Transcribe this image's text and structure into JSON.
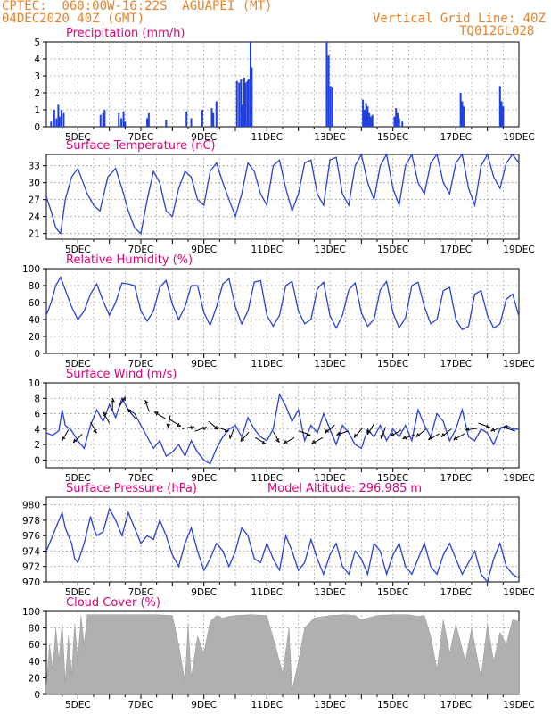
{
  "header": {
    "line1": "CPTEC:  060:00W-16:22S  AGUAPEI (MT)",
    "line2": "04DEC2020 40Z (GMT)",
    "grid_note": "Vertical Grid Line: 40Z",
    "code": "TQ0126L028"
  },
  "colors": {
    "series": "#2b3fd6",
    "bars": "#1f3fe0",
    "cloud": "#b0b0b0",
    "title": "#e0007a",
    "header": "#e8822a"
  },
  "date_ticks": [
    "5DEC",
    "7DEC",
    "9DEC",
    "11DEC",
    "13DEC",
    "15DEC",
    "17DEC",
    "19DEC"
  ],
  "chart_data": [
    {
      "type": "bar",
      "title": "Precipitation (mm/h)",
      "x_unit": "days since 04DEC2020 00Z",
      "xlim": [
        0,
        15
      ],
      "ylim": [
        0,
        5
      ],
      "yticks": [
        "0",
        "1",
        "2",
        "3",
        "4",
        "5"
      ],
      "x": [
        0.15,
        0.25,
        0.32,
        0.38,
        0.42,
        0.48,
        0.55,
        1.72,
        1.8,
        1.85,
        2.3,
        2.38,
        2.45,
        2.5,
        3.2,
        3.25,
        3.8,
        4.45,
        4.6,
        4.95,
        5.25,
        5.3,
        5.4,
        6.05,
        6.12,
        6.18,
        6.22,
        6.28,
        6.32,
        6.38,
        6.42,
        6.48,
        6.52,
        8.9,
        8.96,
        9.02,
        9.08,
        10.05,
        10.1,
        10.15,
        10.2,
        10.25,
        10.3,
        10.35,
        11.05,
        11.1,
        11.15,
        11.2,
        11.3,
        13.15,
        13.2,
        13.25,
        14.4,
        14.45,
        14.5
      ],
      "values": [
        0.3,
        1.0,
        0.5,
        1.3,
        0.6,
        1.0,
        0.8,
        0.7,
        0.8,
        1.0,
        0.8,
        0.5,
        0.9,
        0.3,
        0.5,
        0.8,
        0.4,
        0.9,
        0.5,
        1.0,
        1.1,
        0.8,
        1.5,
        2.7,
        2.6,
        2.8,
        1.3,
        2.9,
        2.6,
        2.7,
        2.8,
        5.0,
        3.5,
        5.0,
        4.2,
        2.4,
        2.3,
        1.6,
        1.0,
        1.4,
        1.2,
        0.8,
        0.6,
        0.7,
        0.6,
        1.1,
        0.8,
        0.5,
        0.3,
        2.0,
        1.5,
        1.2,
        2.4,
        1.5,
        1.2
      ]
    },
    {
      "type": "line",
      "title": "Surface Temperature (nC)",
      "x_unit": "days since 04DEC2020 00Z",
      "xlim": [
        0,
        15
      ],
      "ylim": [
        20,
        35
      ],
      "yticks": [
        "21",
        "24",
        "27",
        "30",
        "33"
      ],
      "ytick_values": [
        21,
        24,
        27,
        30,
        33
      ],
      "x": [
        0.0,
        0.15,
        0.3,
        0.45,
        0.6,
        0.8,
        1.0,
        1.1,
        1.3,
        1.5,
        1.7,
        1.95,
        2.2,
        2.4,
        2.6,
        2.8,
        3.0,
        3.2,
        3.4,
        3.6,
        3.8,
        4.0,
        4.2,
        4.4,
        4.6,
        4.8,
        5.0,
        5.2,
        5.4,
        5.6,
        5.8,
        6.0,
        6.2,
        6.4,
        6.6,
        6.8,
        7.0,
        7.2,
        7.4,
        7.6,
        7.8,
        8.0,
        8.2,
        8.4,
        8.6,
        8.8,
        9.0,
        9.2,
        9.4,
        9.6,
        9.8,
        10.0,
        10.2,
        10.4,
        10.6,
        10.8,
        11.0,
        11.2,
        11.4,
        11.6,
        11.8,
        12.0,
        12.2,
        12.4,
        12.6,
        12.8,
        13.0,
        13.2,
        13.4,
        13.6,
        13.8,
        14.0,
        14.2,
        14.4,
        14.6,
        14.8,
        15.0
      ],
      "values": [
        27.5,
        25,
        22,
        21,
        27,
        31,
        32.5,
        31,
        28,
        26,
        25,
        31,
        32.5,
        29,
        25,
        22,
        21,
        27,
        32,
        30,
        25,
        24,
        29,
        32,
        31,
        27,
        26,
        32,
        33.5,
        30,
        27,
        24,
        28,
        33.5,
        32,
        28,
        26,
        33,
        34,
        29,
        25,
        28,
        33.5,
        34,
        28,
        26,
        34,
        34.5,
        28,
        26,
        33,
        35,
        30,
        27,
        33,
        35,
        29,
        26,
        33,
        35,
        30,
        28,
        33.5,
        35,
        30,
        28,
        33.5,
        35,
        29,
        26,
        33,
        35,
        31,
        29,
        33.5,
        35,
        33.5
      ]
    },
    {
      "type": "line",
      "title": "Relative Humidity (%)",
      "x_unit": "days since 04DEC2020 00Z",
      "xlim": [
        0,
        15
      ],
      "ylim": [
        0,
        100
      ],
      "yticks": [
        "0",
        "20",
        "40",
        "60",
        "80",
        "100"
      ],
      "ytick_values": [
        0,
        20,
        40,
        60,
        80,
        100
      ],
      "x": [
        0.0,
        0.15,
        0.3,
        0.45,
        0.6,
        0.8,
        1.0,
        1.2,
        1.4,
        1.6,
        1.8,
        2.0,
        2.2,
        2.4,
        2.6,
        2.8,
        3.0,
        3.2,
        3.4,
        3.6,
        3.8,
        4.0,
        4.2,
        4.4,
        4.6,
        4.8,
        5.0,
        5.2,
        5.4,
        5.6,
        5.8,
        6.0,
        6.2,
        6.4,
        6.6,
        6.8,
        7.0,
        7.2,
        7.4,
        7.6,
        7.8,
        8.0,
        8.2,
        8.4,
        8.6,
        8.8,
        9.0,
        9.2,
        9.4,
        9.6,
        9.8,
        10.0,
        10.2,
        10.4,
        10.6,
        10.8,
        11.0,
        11.2,
        11.4,
        11.6,
        11.8,
        12.0,
        12.2,
        12.4,
        12.6,
        12.8,
        13.0,
        13.2,
        13.4,
        13.6,
        13.8,
        14.0,
        14.2,
        14.4,
        14.6,
        14.8,
        15.0
      ],
      "values": [
        45,
        60,
        80,
        90,
        75,
        55,
        40,
        50,
        70,
        82,
        62,
        45,
        60,
        83,
        82,
        80,
        50,
        38,
        50,
        78,
        86,
        58,
        40,
        55,
        80,
        80,
        48,
        33,
        55,
        82,
        88,
        55,
        35,
        50,
        84,
        86,
        45,
        32,
        45,
        80,
        85,
        50,
        35,
        40,
        76,
        84,
        45,
        30,
        45,
        75,
        83,
        48,
        32,
        40,
        75,
        85,
        48,
        30,
        42,
        80,
        84,
        55,
        35,
        40,
        74,
        78,
        40,
        28,
        32,
        70,
        74,
        45,
        30,
        35,
        64,
        70,
        44
      ]
    },
    {
      "type": "line",
      "title": "Surface Wind (m/s)",
      "x_unit": "days since 04DEC2020 00Z",
      "xlim": [
        0,
        15
      ],
      "ylim": [
        -1,
        10
      ],
      "yticks": [
        "0",
        "2",
        "4",
        "6",
        "8",
        "10"
      ],
      "ytick_values": [
        0,
        2,
        4,
        6,
        8,
        10
      ],
      "x": [
        0.0,
        0.2,
        0.4,
        0.5,
        0.6,
        0.8,
        1.0,
        1.2,
        1.4,
        1.6,
        1.8,
        2.0,
        2.2,
        2.4,
        2.6,
        2.8,
        3.0,
        3.2,
        3.4,
        3.6,
        3.8,
        4.0,
        4.2,
        4.4,
        4.6,
        4.8,
        5.0,
        5.2,
        5.4,
        5.6,
        5.8,
        6.0,
        6.2,
        6.4,
        6.6,
        6.8,
        7.0,
        7.2,
        7.4,
        7.6,
        7.8,
        8.0,
        8.2,
        8.4,
        8.6,
        8.8,
        9.0,
        9.2,
        9.4,
        9.6,
        9.8,
        10.0,
        10.2,
        10.4,
        10.6,
        10.8,
        11.0,
        11.2,
        11.4,
        11.6,
        11.8,
        12.0,
        12.2,
        12.4,
        12.6,
        12.8,
        13.0,
        13.2,
        13.4,
        13.6,
        13.8,
        14.0,
        14.2,
        14.4,
        14.6,
        14.8,
        15.0
      ],
      "values": [
        3.5,
        3.2,
        3.8,
        6.5,
        4.5,
        3.8,
        2.5,
        1.5,
        4.5,
        6.5,
        5,
        7.2,
        5.5,
        8,
        6.5,
        6,
        4.5,
        3,
        1.5,
        2.5,
        0.5,
        1,
        2,
        0.5,
        2.5,
        1,
        0,
        -0.5,
        1.5,
        3,
        4,
        4.5,
        3,
        5.5,
        4,
        3,
        2.5,
        4,
        8.5,
        7,
        5,
        6.5,
        2.5,
        4.5,
        3.5,
        6,
        4,
        2,
        4.5,
        3.5,
        2,
        1.5,
        4,
        3,
        4.5,
        2.5,
        4,
        3,
        4.5,
        2.5,
        6.5,
        4.5,
        3,
        6,
        5,
        2.5,
        4,
        6.5,
        3,
        2.5,
        4,
        3.5,
        2,
        4,
        4.5,
        4,
        4
      ],
      "arrow_x": [
        0.6,
        1.0,
        1.5,
        1.9,
        2.1,
        2.4,
        2.7,
        3.2,
        3.6,
        3.9,
        4.1,
        4.5,
        4.9,
        5.3,
        5.6,
        5.9,
        6.3,
        6.8,
        7.3,
        7.7,
        8.2,
        8.6,
        9.0,
        9.4,
        9.9,
        10.3,
        10.7,
        11.1,
        11.5,
        11.9,
        12.3,
        12.7,
        13.1,
        13.5,
        13.9,
        14.3,
        14.7
      ],
      "arrow_y": [
        3.2,
        2.8,
        4.2,
        5.5,
        7.2,
        7.5,
        6.0,
        7.0,
        5.8,
        5.0,
        4.8,
        4.2,
        4.0,
        4.5,
        4.0,
        3.5,
        3.0,
        2.5,
        3.0,
        2.5,
        3.5,
        2.5,
        4.0,
        3.5,
        3.5,
        4.0,
        3.5,
        3.5,
        3.0,
        3.5,
        3.0,
        3.5,
        3.0,
        4.0,
        4.5,
        4.0,
        4.0
      ],
      "arrow_dir_deg": [
        -120,
        -135,
        -60,
        120,
        90,
        60,
        130,
        110,
        150,
        -100,
        -30,
        10,
        20,
        -40,
        -20,
        -110,
        -130,
        -30,
        -60,
        -150,
        -20,
        -150,
        -140,
        -160,
        -130,
        -120,
        -110,
        -150,
        -160,
        -140,
        -150,
        -140,
        -150,
        -170,
        -20,
        -160,
        160
      ]
    },
    {
      "type": "line",
      "title": "Surface Pressure (hPa)",
      "annotation": "Model Altitude: 296.985 m",
      "x_unit": "days since 04DEC2020 00Z",
      "xlim": [
        0,
        15
      ],
      "ylim": [
        970,
        981
      ],
      "yticks": [
        "970",
        "972",
        "974",
        "976",
        "978",
        "980"
      ],
      "ytick_values": [
        970,
        972,
        974,
        976,
        978,
        980
      ],
      "x": [
        0.0,
        0.2,
        0.4,
        0.5,
        0.6,
        0.8,
        0.9,
        1.0,
        1.2,
        1.4,
        1.5,
        1.6,
        1.8,
        2.0,
        2.2,
        2.4,
        2.6,
        2.8,
        3.0,
        3.2,
        3.4,
        3.6,
        3.8,
        4.0,
        4.2,
        4.4,
        4.6,
        4.8,
        5.0,
        5.2,
        5.4,
        5.6,
        5.8,
        6.0,
        6.2,
        6.4,
        6.6,
        6.8,
        7.0,
        7.2,
        7.4,
        7.6,
        7.8,
        8.0,
        8.2,
        8.4,
        8.6,
        8.8,
        9.0,
        9.2,
        9.4,
        9.6,
        9.8,
        10.0,
        10.2,
        10.4,
        10.6,
        10.8,
        11.0,
        11.2,
        11.4,
        11.6,
        11.8,
        12.0,
        12.2,
        12.4,
        12.6,
        12.8,
        13.0,
        13.2,
        13.4,
        13.6,
        13.8,
        14.0,
        14.2,
        14.4,
        14.6,
        14.8,
        15.0
      ],
      "values": [
        974,
        976,
        978,
        979,
        977,
        975,
        973,
        972.5,
        975,
        978.5,
        977,
        976,
        976.5,
        979.5,
        978,
        976,
        979,
        977,
        975,
        976,
        975.5,
        978,
        976,
        973.5,
        972,
        975,
        977,
        974,
        971.5,
        973,
        975,
        974,
        972,
        974,
        977,
        976,
        973,
        972.5,
        975,
        973,
        971.5,
        976,
        974,
        971.5,
        972.5,
        975.5,
        973,
        971,
        973.5,
        975,
        972,
        971,
        974,
        973,
        971,
        975,
        974,
        971,
        973.5,
        975,
        972,
        971,
        973,
        975,
        972,
        971,
        973.5,
        975,
        973,
        971,
        972.5,
        974,
        971,
        970,
        973,
        975,
        972,
        971,
        970.5
      ]
    },
    {
      "type": "area",
      "title": "Cloud Cover (%)",
      "x_unit": "days since 04DEC2020 00Z",
      "xlim": [
        0,
        15
      ],
      "ylim": [
        0,
        100
      ],
      "yticks": [
        "0",
        "20",
        "40",
        "60",
        "80",
        "100"
      ],
      "ytick_values": [
        0,
        20,
        40,
        60,
        80,
        100
      ],
      "x": [
        0.0,
        0.1,
        0.2,
        0.3,
        0.4,
        0.5,
        0.6,
        0.7,
        0.8,
        0.9,
        1.0,
        1.1,
        1.2,
        1.3,
        1.5,
        2.0,
        2.5,
        3.0,
        3.5,
        4.0,
        4.2,
        4.4,
        4.5,
        4.6,
        4.8,
        5.0,
        5.2,
        5.4,
        5.6,
        5.8,
        6.0,
        6.5,
        7.0,
        7.3,
        7.5,
        7.7,
        7.8,
        8.0,
        8.2,
        8.5,
        9.0,
        9.5,
        9.8,
        10.0,
        10.5,
        11.0,
        11.5,
        11.8,
        12.0,
        12.2,
        12.4,
        12.6,
        12.8,
        13.0,
        13.3,
        13.5,
        13.8,
        14.0,
        14.2,
        14.4,
        14.6,
        14.8,
        15.0
      ],
      "values": [
        10,
        60,
        30,
        80,
        40,
        88,
        15,
        70,
        25,
        85,
        40,
        95,
        60,
        96,
        96,
        96,
        96,
        96,
        96,
        95,
        60,
        15,
        85,
        20,
        70,
        50,
        88,
        95,
        92,
        94,
        95,
        96,
        95,
        55,
        25,
        80,
        5,
        40,
        80,
        92,
        95,
        96,
        95,
        90,
        95,
        96,
        96,
        94,
        95,
        70,
        30,
        90,
        50,
        85,
        40,
        80,
        20,
        85,
        40,
        75,
        60,
        90,
        88
      ]
    }
  ]
}
